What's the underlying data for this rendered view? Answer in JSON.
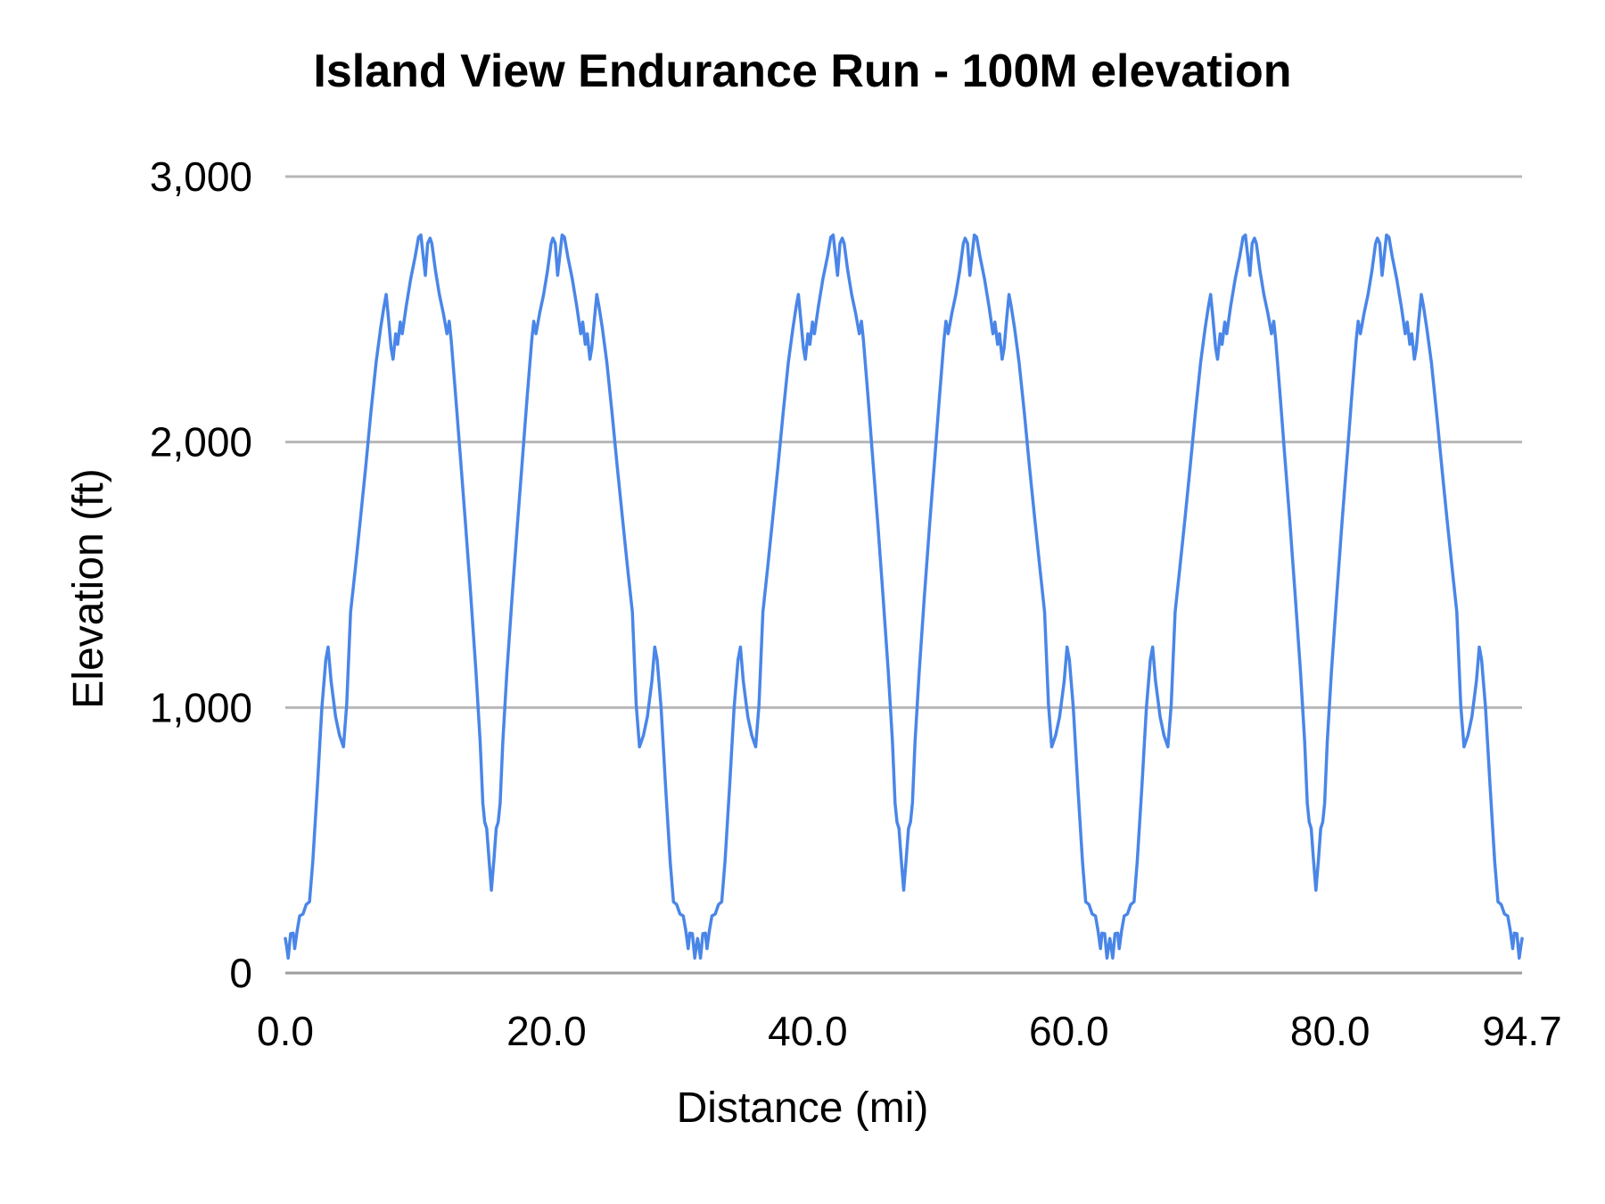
{
  "title": "Island View Endurance Run - 100M elevation",
  "chart_data": {
    "type": "line",
    "title": "Island View Endurance Run - 100M elevation",
    "xlabel": "Distance (mi)",
    "ylabel": "Elevation (ft)",
    "xlim": [
      0,
      94.7
    ],
    "ylim": [
      0,
      3000
    ],
    "grid": "horizontal",
    "legend": "none",
    "line_color": "#4a86e8",
    "gridline_color": "#b7b7b7",
    "x_ticks": [
      {
        "value": 0,
        "label": "0.0"
      },
      {
        "value": 20,
        "label": "20.0"
      },
      {
        "value": 40,
        "label": "40.0"
      },
      {
        "value": 60,
        "label": "60.0"
      },
      {
        "value": 80,
        "label": "80.0"
      },
      {
        "value": 94.7,
        "label": "94.7"
      }
    ],
    "y_ticks": [
      {
        "value": 0,
        "label": "0"
      },
      {
        "value": 1000,
        "label": "1,000"
      },
      {
        "value": 2000,
        "label": "2,000"
      },
      {
        "value": 3000,
        "label": "3,000"
      }
    ],
    "laps": 3,
    "lap_length_mi": 31.5667,
    "lap_profile_mi_ft": [
      [
        0.0,
        130
      ],
      [
        0.1,
        100
      ],
      [
        0.22,
        56
      ],
      [
        0.4,
        148
      ],
      [
        0.6,
        150
      ],
      [
        0.72,
        92
      ],
      [
        0.9,
        158
      ],
      [
        1.1,
        215
      ],
      [
        1.35,
        222
      ],
      [
        1.6,
        258
      ],
      [
        1.85,
        268
      ],
      [
        2.1,
        420
      ],
      [
        2.45,
        700
      ],
      [
        2.8,
        1000
      ],
      [
        3.1,
        1180
      ],
      [
        3.28,
        1228
      ],
      [
        3.5,
        1100
      ],
      [
        3.85,
        965
      ],
      [
        4.15,
        895
      ],
      [
        4.45,
        852
      ],
      [
        4.7,
        1010
      ],
      [
        5.0,
        1360
      ],
      [
        5.35,
        1520
      ],
      [
        5.75,
        1710
      ],
      [
        6.15,
        1905
      ],
      [
        6.55,
        2110
      ],
      [
        6.95,
        2300
      ],
      [
        7.3,
        2430
      ],
      [
        7.55,
        2510
      ],
      [
        7.72,
        2556
      ],
      [
        7.9,
        2465
      ],
      [
        8.1,
        2355
      ],
      [
        8.25,
        2312
      ],
      [
        8.45,
        2408
      ],
      [
        8.6,
        2368
      ],
      [
        8.8,
        2452
      ],
      [
        8.95,
        2408
      ],
      [
        9.25,
        2510
      ],
      [
        9.6,
        2615
      ],
      [
        9.95,
        2700
      ],
      [
        10.2,
        2772
      ],
      [
        10.38,
        2780
      ],
      [
        10.55,
        2705
      ],
      [
        10.72,
        2628
      ],
      [
        10.9,
        2748
      ],
      [
        11.08,
        2768
      ],
      [
        11.22,
        2748
      ],
      [
        11.5,
        2645
      ],
      [
        11.8,
        2555
      ],
      [
        12.1,
        2485
      ],
      [
        12.38,
        2408
      ],
      [
        12.55,
        2455
      ],
      [
        12.7,
        2385
      ],
      [
        13.05,
        2170
      ],
      [
        13.4,
        1945
      ],
      [
        13.8,
        1690
      ],
      [
        14.2,
        1420
      ],
      [
        14.6,
        1135
      ],
      [
        14.92,
        870
      ],
      [
        15.12,
        640
      ],
      [
        15.27,
        568
      ],
      [
        15.42,
        545
      ],
      [
        15.6,
        425
      ],
      [
        15.78,
        312
      ],
      [
        15.97,
        425
      ],
      [
        16.15,
        545
      ],
      [
        16.3,
        568
      ],
      [
        16.45,
        640
      ],
      [
        16.65,
        870
      ],
      [
        16.97,
        1135
      ],
      [
        17.37,
        1420
      ],
      [
        17.77,
        1690
      ],
      [
        18.17,
        1945
      ],
      [
        18.52,
        2170
      ],
      [
        18.87,
        2385
      ],
      [
        19.02,
        2455
      ],
      [
        19.19,
        2408
      ],
      [
        19.47,
        2485
      ],
      [
        19.77,
        2555
      ],
      [
        20.07,
        2645
      ],
      [
        20.35,
        2748
      ],
      [
        20.49,
        2768
      ],
      [
        20.67,
        2748
      ],
      [
        20.85,
        2628
      ],
      [
        21.02,
        2705
      ],
      [
        21.19,
        2780
      ],
      [
        21.37,
        2772
      ],
      [
        21.62,
        2700
      ],
      [
        21.97,
        2615
      ],
      [
        22.32,
        2510
      ],
      [
        22.62,
        2408
      ],
      [
        22.77,
        2452
      ],
      [
        22.97,
        2368
      ],
      [
        23.12,
        2408
      ],
      [
        23.32,
        2312
      ],
      [
        23.47,
        2355
      ],
      [
        23.67,
        2465
      ],
      [
        23.85,
        2556
      ],
      [
        24.02,
        2510
      ],
      [
        24.27,
        2430
      ],
      [
        24.62,
        2300
      ],
      [
        25.02,
        2110
      ],
      [
        25.42,
        1905
      ],
      [
        25.82,
        1710
      ],
      [
        26.22,
        1520
      ],
      [
        26.57,
        1360
      ],
      [
        26.87,
        1010
      ],
      [
        27.12,
        852
      ],
      [
        27.42,
        895
      ],
      [
        27.72,
        965
      ],
      [
        28.07,
        1100
      ],
      [
        28.29,
        1228
      ],
      [
        28.47,
        1180
      ],
      [
        28.77,
        1000
      ],
      [
        29.12,
        700
      ],
      [
        29.47,
        420
      ],
      [
        29.72,
        268
      ],
      [
        29.97,
        258
      ],
      [
        30.22,
        222
      ],
      [
        30.47,
        215
      ],
      [
        30.67,
        158
      ],
      [
        30.85,
        92
      ],
      [
        30.97,
        150
      ],
      [
        31.17,
        148
      ],
      [
        31.35,
        56
      ],
      [
        31.47,
        100
      ],
      [
        31.5667,
        130
      ]
    ]
  }
}
